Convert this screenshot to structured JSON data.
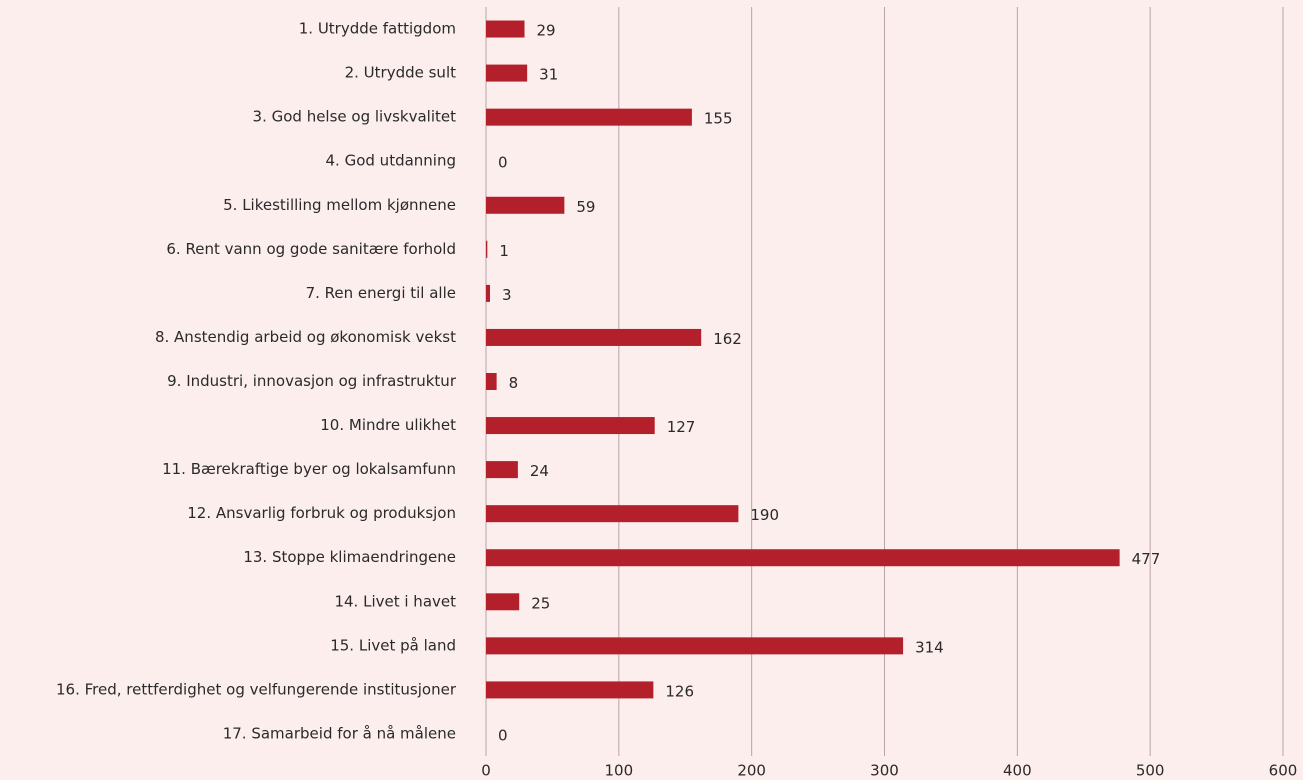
{
  "chart_data": {
    "type": "bar",
    "orientation": "horizontal",
    "categories": [
      "1. Utrydde fattigdom",
      "2. Utrydde sult",
      "3. God helse og livskvalitet",
      "4. God utdanning",
      "5. Likestilling mellom kjønnene",
      "6. Rent vann og gode sanitære forhold",
      "7. Ren energi til alle",
      "8. Anstendig arbeid og økonomisk vekst",
      "9. Industri, innovasjon og infrastruktur",
      "10. Mindre ulikhet",
      "11. Bærekraftige byer og lokalsamfunn",
      "12. Ansvarlig forbruk og produksjon",
      "13. Stoppe klimaendringene",
      "14. Livet i havet",
      "15. Livet på land",
      "16. Fred, rettferdighet og velfungerende institusjoner",
      "17. Samarbeid for å nå målene"
    ],
    "values": [
      29,
      31,
      155,
      0,
      59,
      1,
      3,
      162,
      8,
      127,
      24,
      190,
      477,
      25,
      314,
      126,
      0
    ],
    "color": "#b31f2a",
    "xlim": [
      0,
      600
    ],
    "xticks": [
      0,
      100,
      200,
      300,
      400,
      500,
      600
    ],
    "grid": true
  }
}
